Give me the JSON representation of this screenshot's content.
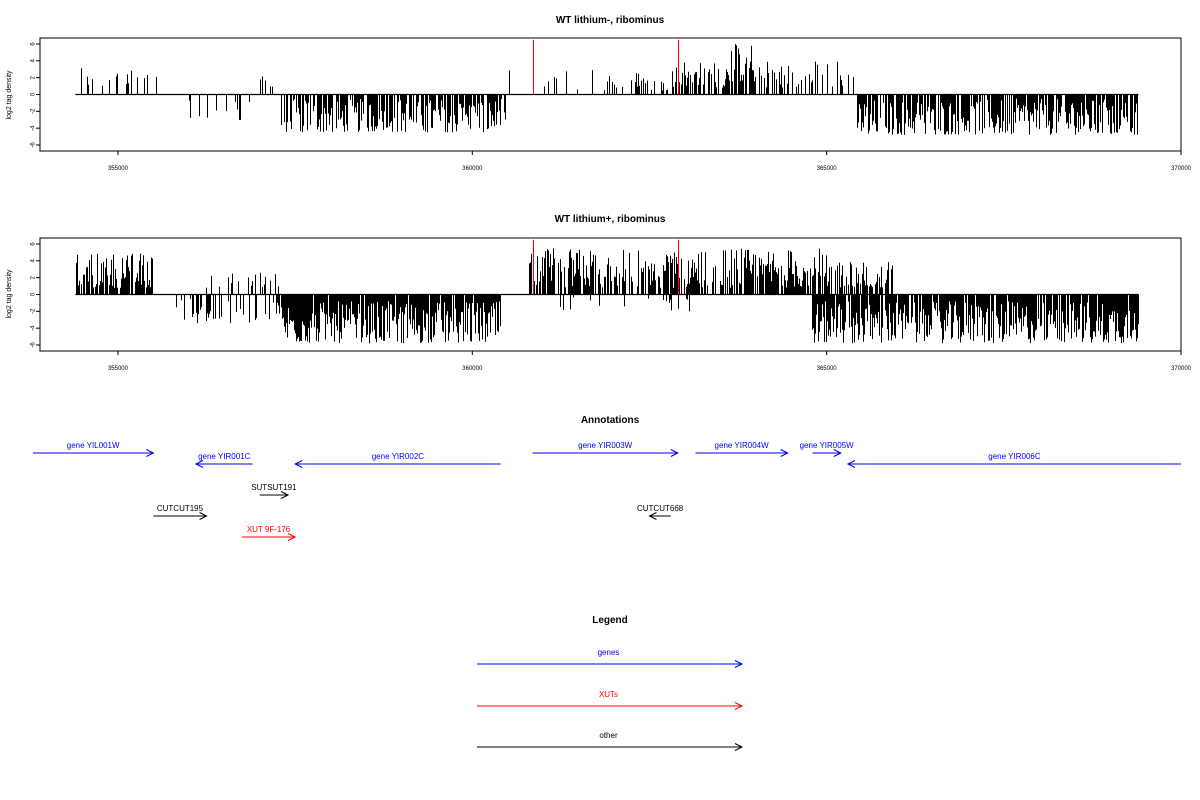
{
  "chart_data": [
    {
      "type": "bar",
      "title": "WT lithium-, ribominus",
      "xlabel": "",
      "ylabel": "log2 tag density",
      "xlim": [
        353900,
        370000
      ],
      "ylim": [
        -6,
        6
      ],
      "xticks": [
        355000,
        360000,
        365000,
        370000
      ],
      "yticks": [
        6,
        4,
        2,
        0,
        -2,
        -4,
        -6
      ],
      "marker_lines": [
        360850,
        362900
      ],
      "marker_color": "#ff0000",
      "bar_color": "#000000",
      "segments": [
        {
          "x0": 354400,
          "x1": 355600,
          "lo": 0.8,
          "hi": 3.5,
          "density": 0.25
        },
        {
          "x0": 356000,
          "x1": 356900,
          "lo": -3.2,
          "hi": -0.5,
          "density": 0.2
        },
        {
          "x0": 357000,
          "x1": 357300,
          "lo": 0.8,
          "hi": 2.8,
          "density": 0.3
        },
        {
          "x0": 357300,
          "x1": 360500,
          "lo": -4.5,
          "hi": -0.5,
          "density": 0.75
        },
        {
          "x0": 360500,
          "x1": 361800,
          "lo": 0.5,
          "hi": 3.0,
          "density": 0.12
        },
        {
          "x0": 361800,
          "x1": 362800,
          "lo": 0.5,
          "hi": 2.8,
          "density": 0.2
        },
        {
          "x0": 362800,
          "x1": 363600,
          "lo": 0.8,
          "hi": 4.0,
          "density": 0.55
        },
        {
          "x0": 363600,
          "x1": 364000,
          "lo": 1.5,
          "hi": 6.0,
          "density": 0.85
        },
        {
          "x0": 364000,
          "x1": 364800,
          "lo": 0.8,
          "hi": 4.0,
          "density": 0.5
        },
        {
          "x0": 364800,
          "x1": 365500,
          "lo": 0.8,
          "hi": 4.2,
          "density": 0.2
        },
        {
          "x0": 365400,
          "x1": 369400,
          "lo": -4.8,
          "hi": -0.5,
          "density": 0.8
        }
      ]
    },
    {
      "type": "bar",
      "title": "WT lithium+, ribominus",
      "xlabel": "",
      "ylabel": "log2 tag density",
      "xlim": [
        353900,
        370000
      ],
      "ylim": [
        -6,
        6
      ],
      "xticks": [
        355000,
        360000,
        365000,
        370000
      ],
      "yticks": [
        6,
        4,
        2,
        0,
        -2,
        -4,
        -6
      ],
      "marker_lines": [
        360850,
        362900
      ],
      "marker_color": "#ff0000",
      "bar_color": "#000000",
      "segments": [
        {
          "x0": 354400,
          "x1": 355500,
          "lo": 0.8,
          "hi": 5.0,
          "density": 0.8
        },
        {
          "x0": 355800,
          "x1": 357300,
          "lo": -3.5,
          "hi": -0.5,
          "density": 0.35
        },
        {
          "x0": 356200,
          "x1": 357300,
          "lo": 0.8,
          "hi": 3.0,
          "density": 0.2
        },
        {
          "x0": 357300,
          "x1": 360400,
          "lo": -5.8,
          "hi": -0.8,
          "density": 0.95
        },
        {
          "x0": 360800,
          "x1": 365000,
          "lo": 0.8,
          "hi": 5.5,
          "density": 0.75
        },
        {
          "x0": 361000,
          "x1": 363600,
          "lo": -2.0,
          "hi": -0.3,
          "density": 0.08
        },
        {
          "x0": 365000,
          "x1": 366000,
          "lo": 0.8,
          "hi": 4.0,
          "density": 0.6
        },
        {
          "x0": 364800,
          "x1": 369400,
          "lo": -5.8,
          "hi": -0.8,
          "density": 0.9
        }
      ]
    }
  ],
  "annotations": {
    "title": "Annotations",
    "items": [
      {
        "label": "gene YIL001W",
        "color": "#0000ff",
        "start": 353800,
        "end": 355500,
        "strand": "+",
        "row": 0
      },
      {
        "label": "gene YIR001C",
        "color": "#0000ff",
        "start": 356100,
        "end": 356900,
        "strand": "-",
        "row": 1
      },
      {
        "label": "gene YIR002C",
        "color": "#0000ff",
        "start": 357500,
        "end": 360400,
        "strand": "-",
        "row": 1
      },
      {
        "label": "gene YIR003W",
        "color": "#0000ff",
        "start": 360850,
        "end": 362900,
        "strand": "+",
        "row": 0
      },
      {
        "label": "gene YIR004W",
        "color": "#0000ff",
        "start": 363150,
        "end": 364450,
        "strand": "+",
        "row": 0
      },
      {
        "label": "gene YIR005W",
        "color": "#0000ff",
        "start": 364800,
        "end": 365200,
        "strand": "+",
        "row": 0
      },
      {
        "label": "gene YIR006C",
        "color": "#0000ff",
        "start": 365300,
        "end": 370000,
        "strand": "-",
        "row": 1
      },
      {
        "label": "SUTSUT191",
        "color": "#000000",
        "start": 357000,
        "end": 357400,
        "strand": "+",
        "row": 2
      },
      {
        "label": "CUTCUT195",
        "color": "#000000",
        "start": 355500,
        "end": 356250,
        "strand": "+",
        "row": 3
      },
      {
        "label": "XUT 9F-176",
        "color": "#ff0000",
        "start": 356750,
        "end": 357500,
        "strand": "+",
        "row": 4
      },
      {
        "label": "CUTCUT668",
        "color": "#000000",
        "start": 362500,
        "end": 362800,
        "strand": "-",
        "row": 3
      }
    ]
  },
  "legend": {
    "title": "Legend",
    "items": [
      {
        "label": "genes",
        "color": "#0000ff"
      },
      {
        "label": "XUTs",
        "color": "#ff0000"
      },
      {
        "label": "other",
        "color": "#000000"
      }
    ]
  }
}
